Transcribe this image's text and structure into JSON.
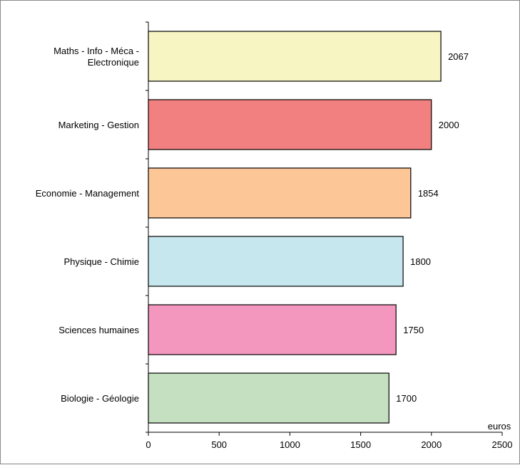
{
  "chart_data": {
    "type": "bar",
    "orientation": "horizontal",
    "categories": [
      [
        "Maths - Info - Méca -",
        "Electronique"
      ],
      [
        "Marketing - Gestion"
      ],
      [
        "Economie - Management"
      ],
      [
        "Physique - Chimie"
      ],
      [
        "Sciences humaines"
      ],
      [
        "Biologie - Géologie"
      ]
    ],
    "values": [
      2067,
      2000,
      1854,
      1800,
      1750,
      1700
    ],
    "data_labels": [
      "2067",
      "2000",
      "1854",
      "1800",
      "1750",
      "1700"
    ],
    "bar_colors": [
      "#f7f5c2",
      "#f38080",
      "#fdc696",
      "#c6e7ee",
      "#f497bf",
      "#c4e0c0"
    ],
    "xlim": [
      0,
      2500
    ],
    "xticks": [
      0,
      500,
      1000,
      1500,
      2000,
      2500
    ],
    "xlabel": "euros",
    "grid": false,
    "legend": false
  }
}
